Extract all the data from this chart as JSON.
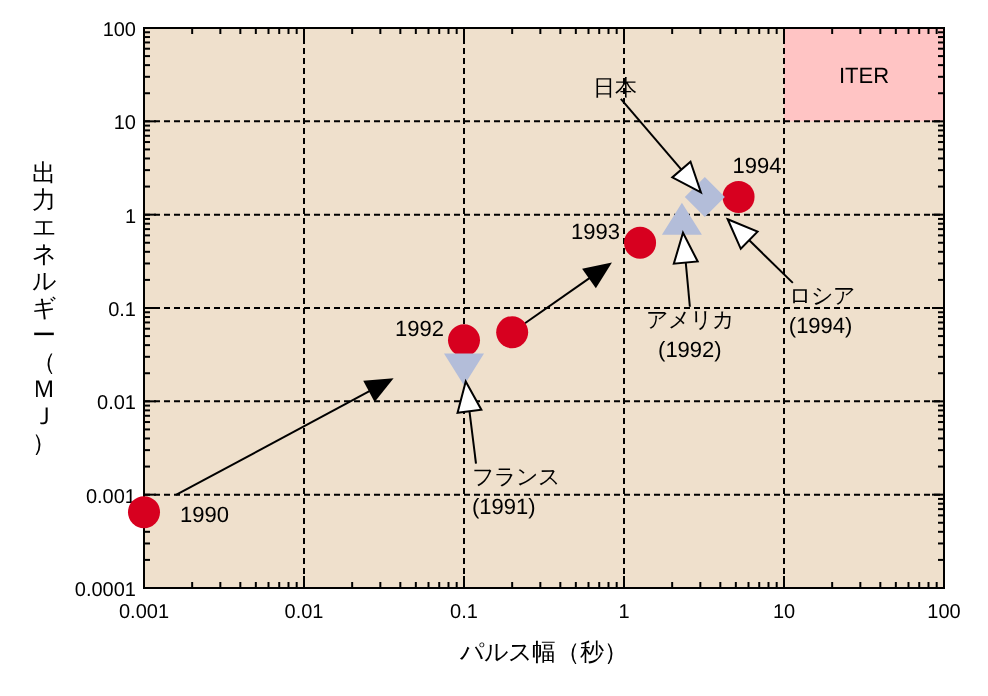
{
  "chart_data": {
    "type": "scatter",
    "xlabel": "パルス幅（秒）",
    "ylabel": "出力エネルギー（ＭＪ）",
    "log": "xy",
    "grid": true,
    "xlim": [
      0.001,
      100
    ],
    "xticks": [
      0.001,
      0.01,
      0.1,
      1,
      10,
      100
    ],
    "ylim": [
      0.0001,
      100
    ],
    "yticks": [
      0.0001,
      0.001,
      0.01,
      0.1,
      1,
      10,
      100
    ],
    "series": [
      {
        "color": "#d7001f",
        "marker": "circle",
        "x": [
          0.001,
          0.1,
          0.2,
          1.26,
          5.2
        ],
        "values": [
          0.00065,
          0.045,
          0.055,
          0.5,
          1.55
        ]
      },
      {
        "color": "#b3bdd9",
        "marker": "triangle-down",
        "x": [
          0.1
        ],
        "values": [
          0.023
        ]
      },
      {
        "color": "#b3bdd9",
        "marker": "triangle",
        "x": [
          2.3
        ],
        "values": [
          0.86
        ]
      },
      {
        "color": "#b3bdd9",
        "marker": "diamond",
        "x": [
          3.2
        ],
        "values": [
          1.55
        ]
      }
    ],
    "annotations": [
      {
        "text": "1990",
        "x": 0.001,
        "y": 0.00065
      },
      {
        "text": "1992",
        "x": 0.1,
        "y": 0.045
      },
      {
        "text": "1993",
        "x": 1.26,
        "y": 0.5
      },
      {
        "text": "1994",
        "x": 5.2,
        "y": 1.55
      },
      "日本",
      "アメリカ\n(1992)",
      "ロシア\n(1994)",
      "フランス\n(1991)",
      "ITER"
    ]
  }
}
